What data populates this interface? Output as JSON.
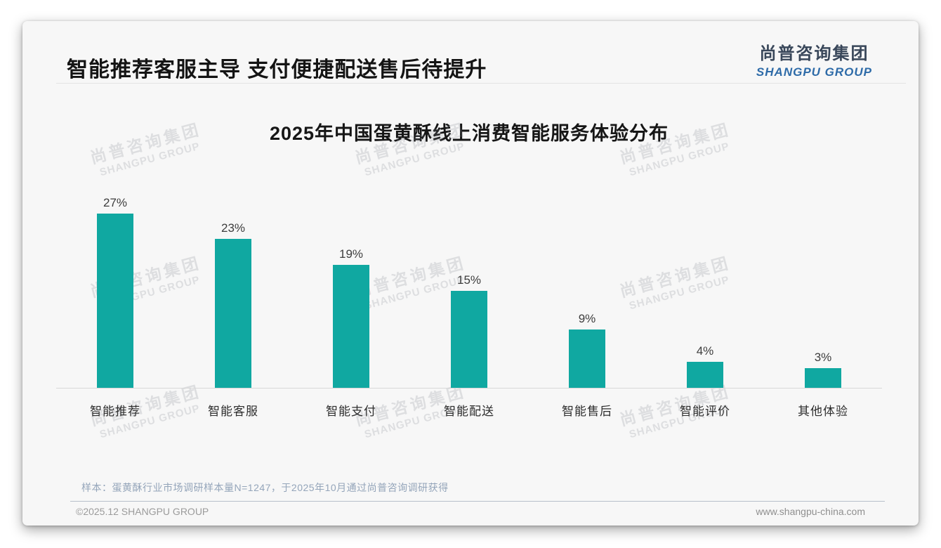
{
  "page": {
    "title": "智能推荐客服主导 支付便捷配送售后待提升",
    "logo": {
      "cn": "尚普咨询集团",
      "en": "SHANGPU GROUP"
    },
    "watermark": {
      "cn": "尚普咨询集团",
      "en": "SHANGPU GROUP"
    },
    "footer": {
      "sample_note": "样本：蛋黄酥行业市场调研样本量N=1247，于2025年10月通过尚普咨询调研获得",
      "copyright": "©2025.12 SHANGPU GROUP",
      "website": "www.shangpu-china.com"
    }
  },
  "chart_data": {
    "type": "bar",
    "title": "2025年中国蛋黄酥线上消费智能服务体验分布",
    "categories": [
      "智能推荐",
      "智能客服",
      "智能支付",
      "智能配送",
      "智能售后",
      "智能评价",
      "其他体验"
    ],
    "values": [
      27,
      23,
      19,
      15,
      9,
      4,
      3
    ],
    "value_labels": [
      "27%",
      "23%",
      "19%",
      "15%",
      "9%",
      "4%",
      "3%"
    ],
    "unit": "%",
    "xlabel": "",
    "ylabel": "",
    "ylim": [
      0,
      28
    ],
    "grid": false,
    "legend": "none",
    "bar_color": "#10a8a1",
    "axis_color": "#d8d8d8",
    "pixels_per_unit": 9.2
  },
  "style": {
    "title_color": "#141414",
    "logo_cn_color": "#39475a",
    "logo_en_color": "#2e6ba8",
    "note_color": "#94a5ba"
  }
}
